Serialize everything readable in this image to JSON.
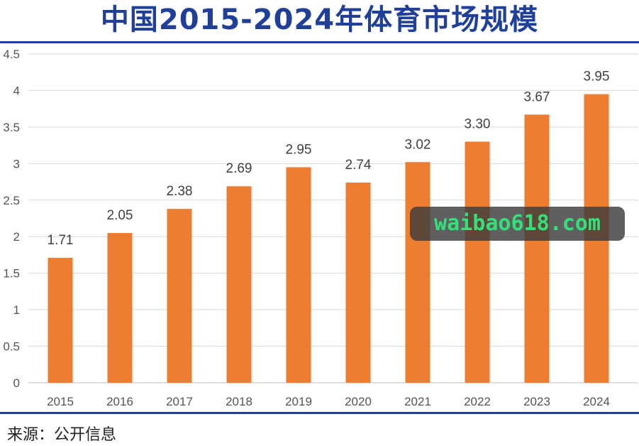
{
  "title": "中国2015-2024年体育市场规模",
  "source": "来源：公开信息",
  "watermark": "waibao618.com",
  "colors": {
    "bar": "#ed7d31",
    "title": "#1f3f99",
    "grid": "#d9d9d9"
  },
  "chart_data": {
    "type": "bar",
    "title": "中国2015-2024年体育市场规模",
    "xlabel": "",
    "ylabel": "",
    "categories": [
      "2015",
      "2016",
      "2017",
      "2018",
      "2019",
      "2020",
      "2021",
      "2022",
      "2023",
      "2024"
    ],
    "values": [
      1.71,
      2.05,
      2.38,
      2.69,
      2.95,
      2.74,
      3.02,
      3.3,
      3.67,
      3.95
    ],
    "value_labels": [
      "1.71",
      "2.05",
      "2.38",
      "2.69",
      "2.95",
      "2.74",
      "3.02",
      "3.30",
      "3.67",
      "3.95"
    ],
    "ylim": [
      0,
      4.5
    ],
    "yticks": [
      "0",
      "0.5",
      "1",
      "1.5",
      "2",
      "2.5",
      "3",
      "3.5",
      "4",
      "4.5"
    ],
    "grid": true,
    "legend": "none"
  }
}
